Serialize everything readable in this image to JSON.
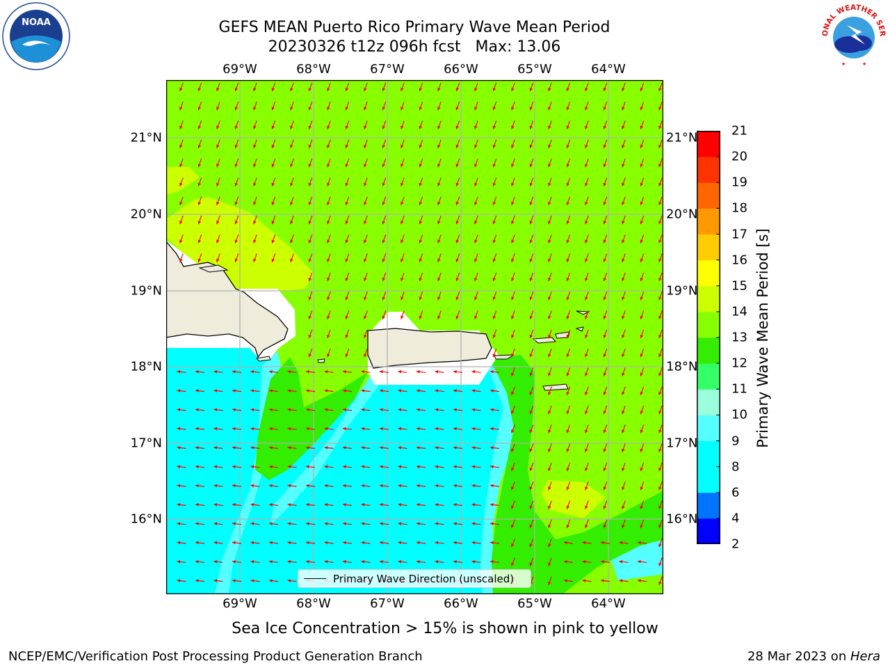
{
  "title": {
    "line1": "GEFS MEAN Puerto Rico Primary Wave Mean Period",
    "line2": "20230326 t12z 096h fcst   Max: 13.06"
  },
  "map": {
    "lon_ticks": [
      "69°W",
      "68°W",
      "67°W",
      "66°W",
      "65°W",
      "64°W"
    ],
    "lat_ticks": [
      "21°N",
      "20°N",
      "19°N",
      "18°N",
      "17°N",
      "16°N"
    ],
    "land_color": "#efecdc",
    "arrow_color": "#ff0000",
    "legend_label": "Primary Wave Direction (unscaled)"
  },
  "colorbar": {
    "label": "Primary Wave Mean Period [s]",
    "ticks": [
      "2",
      "4",
      "6",
      "8",
      "9",
      "10",
      "11",
      "12",
      "13",
      "14",
      "15",
      "16",
      "17",
      "18",
      "19",
      "20",
      "21"
    ],
    "colors": [
      "#0000ff",
      "#0073ff",
      "#00ffff",
      "#55ffff",
      "#99ffdd",
      "#33ff66",
      "#33ee00",
      "#88ff00",
      "#ccff00",
      "#ffff00",
      "#ffcc00",
      "#ff9900",
      "#ff6600",
      "#ff3300",
      "#ff0000"
    ]
  },
  "subtitle": "Sea Ice Concentration > 15% is shown in pink to yellow",
  "footer": {
    "left": "NCEP/EMC/Verification Post Processing Product Generation Branch",
    "date": "28 Mar 2023 on ",
    "host": "Hera"
  },
  "logos": {
    "noaa": "NOAA",
    "nws": "NATIONAL WEATHER SERVICE"
  }
}
